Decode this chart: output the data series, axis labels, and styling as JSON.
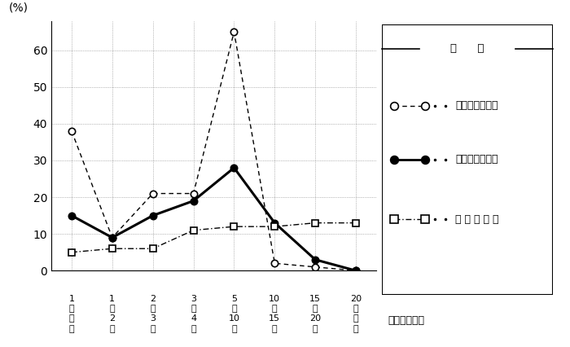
{
  "x_positions": [
    0,
    1,
    2,
    3,
    4,
    5,
    6,
    7
  ],
  "x_labels_line1": [
    "1",
    "1",
    "2",
    "3",
    "5",
    "10",
    "15",
    "20"
  ],
  "x_labels_line2": [
    "年",
    "〜",
    "〜",
    "〜",
    "〜",
    "〜",
    "〜",
    "年"
  ],
  "x_labels_line3": [
    "未",
    "2",
    "3",
    "4",
    "10",
    "15",
    "20",
    "以"
  ],
  "x_labels_line4": [
    "満",
    "年",
    "年",
    "年",
    "年",
    "年",
    "年",
    "上"
  ],
  "series_male": [
    38,
    9,
    21,
    21,
    65,
    2,
    1,
    0
  ],
  "series_female": [
    15,
    9,
    15,
    19,
    28,
    13,
    3,
    0
  ],
  "series_general": [
    5,
    6,
    6,
    11,
    12,
    12,
    13,
    13
  ],
  "ylabel": "(%)",
  "yticks": [
    0,
    10,
    20,
    30,
    40,
    50,
    60
  ],
  "ylim": [
    0,
    68
  ],
  "legend_title": "凡      例",
  "legend_male": "知的障害者男子",
  "legend_female": "知的障害者女子",
  "legend_general": "一 般 労 働 者",
  "xlabel_note": "（勤続年数）",
  "bg_color": "#ffffff",
  "plot_bg": "#ffffff",
  "line_color": "#000000"
}
